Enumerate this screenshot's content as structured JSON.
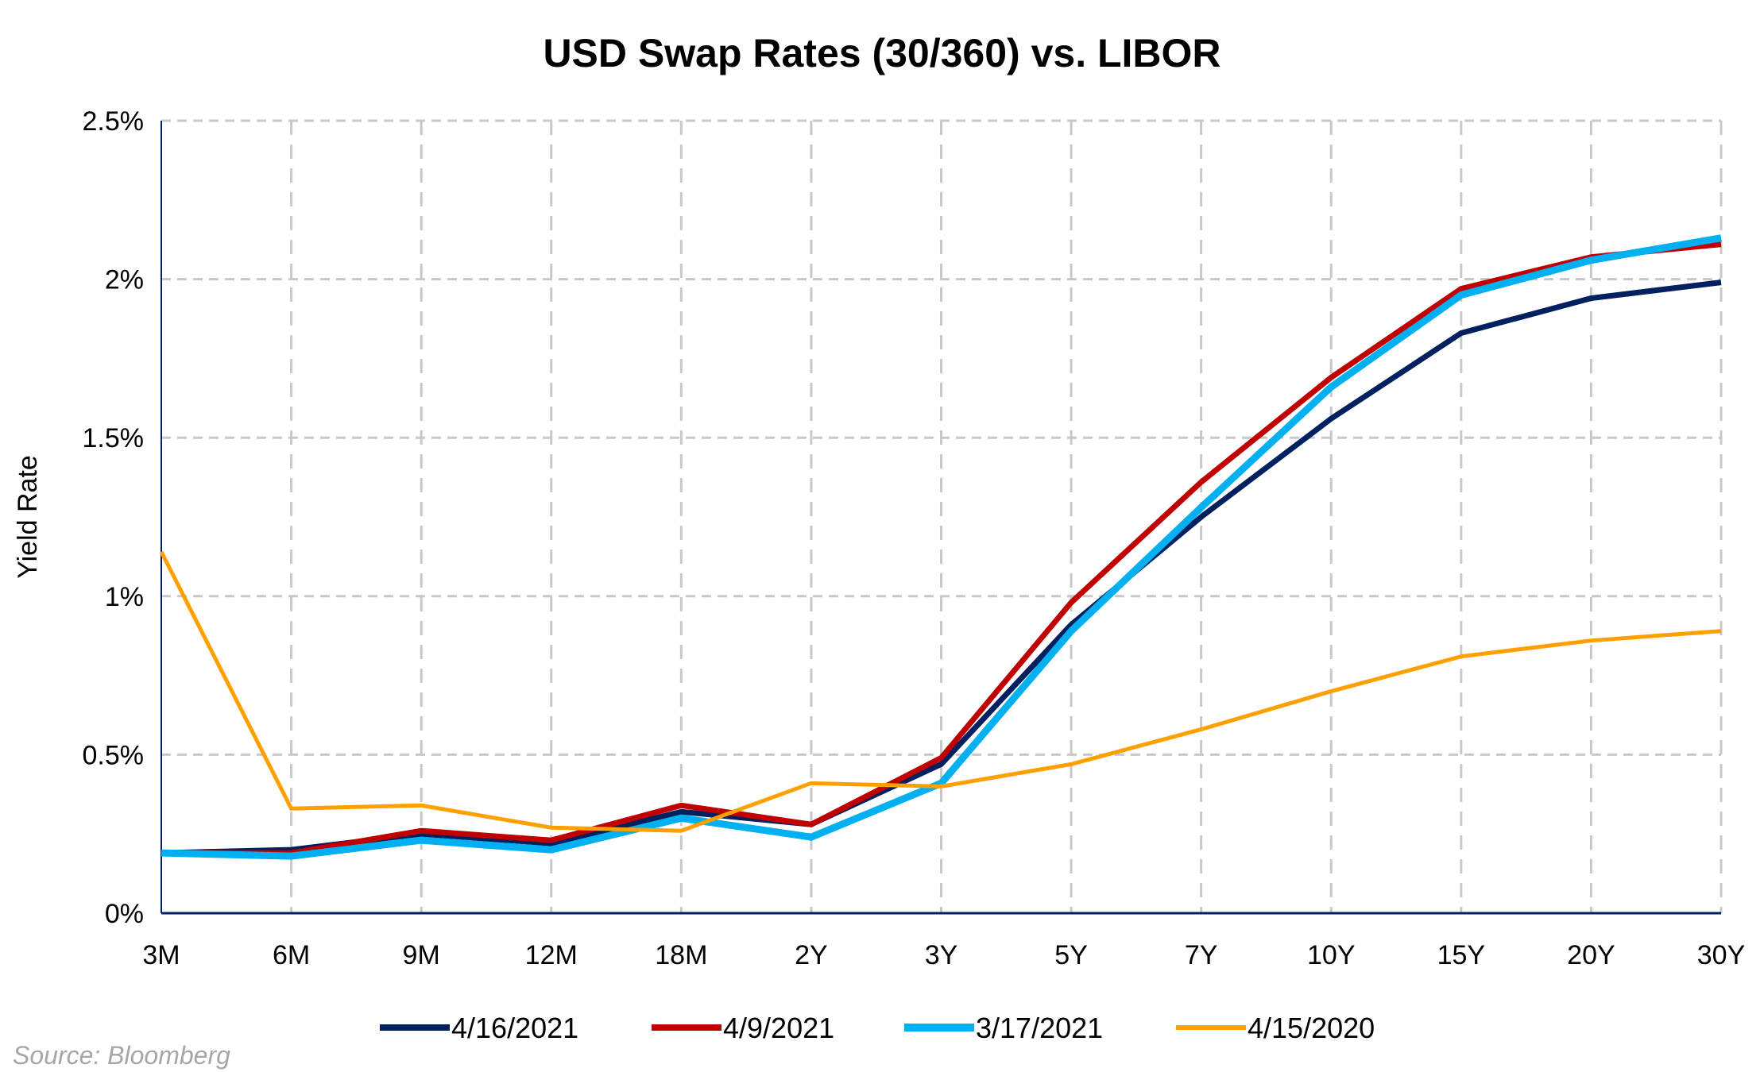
{
  "chart_data": {
    "type": "line",
    "title": "USD Swap Rates (30/360) vs. LIBOR",
    "xlabel": "",
    "ylabel": "Yield Rate",
    "categories": [
      "3M",
      "6M",
      "9M",
      "12M",
      "18M",
      "2Y",
      "3Y",
      "5Y",
      "7Y",
      "10Y",
      "15Y",
      "20Y",
      "30Y"
    ],
    "ylim": [
      0,
      2.5
    ],
    "yticks": [
      0,
      0.5,
      1,
      1.5,
      2,
      2.5
    ],
    "ytick_labels": [
      "0%",
      "0.5%",
      "1%",
      "1.5%",
      "2%",
      "2.5%"
    ],
    "grid": true,
    "legend_position": "bottom",
    "series": [
      {
        "name": "4/16/2021",
        "color": "#002060",
        "values": [
          0.19,
          0.2,
          0.25,
          0.22,
          0.32,
          0.28,
          0.47,
          0.91,
          1.25,
          1.56,
          1.83,
          1.94,
          1.99
        ]
      },
      {
        "name": "4/9/2021",
        "color": "#C00000",
        "values": [
          0.19,
          0.19,
          0.26,
          0.23,
          0.34,
          0.28,
          0.49,
          0.98,
          1.36,
          1.69,
          1.97,
          2.07,
          2.11
        ]
      },
      {
        "name": "3/17/2021",
        "color": "#00B0F0",
        "values": [
          0.19,
          0.18,
          0.23,
          0.2,
          0.3,
          0.24,
          0.41,
          0.89,
          1.28,
          1.66,
          1.95,
          2.06,
          2.13
        ]
      },
      {
        "name": "4/15/2020",
        "color": "#FFA000",
        "values": [
          1.14,
          0.33,
          0.34,
          0.27,
          0.26,
          0.41,
          0.4,
          0.47,
          0.58,
          0.7,
          0.81,
          0.86,
          0.89
        ]
      }
    ]
  },
  "source": "Source: Bloomberg"
}
